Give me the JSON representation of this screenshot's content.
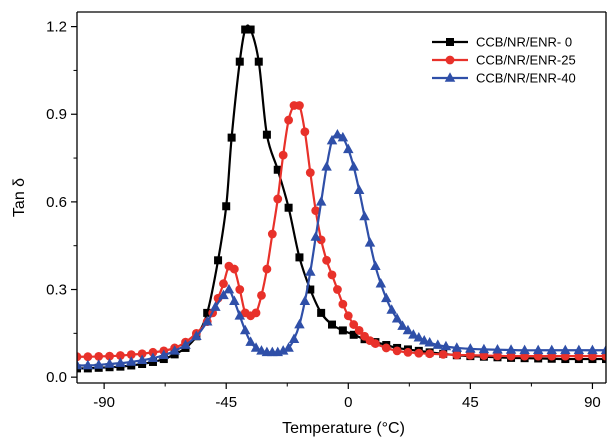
{
  "chart_data": {
    "type": "line",
    "xlabel": "Temperature (°C)",
    "ylabel": "Tan δ",
    "xlim": [
      -100,
      95
    ],
    "ylim": [
      -0.02,
      1.25
    ],
    "xticks": [
      -90,
      -45,
      0,
      45,
      90
    ],
    "yticks": [
      0.0,
      0.3,
      0.6,
      0.9,
      1.2
    ],
    "xtick_labels": [
      "-90",
      "-45",
      "0",
      "45",
      "90"
    ],
    "ytick_labels": [
      "0.0",
      "0.3",
      "0.6",
      "0.9",
      "1.2"
    ],
    "legend_position": "top-right",
    "grid": false,
    "series": [
      {
        "name": "CCB/NR/ENR- 0",
        "color": "#000000",
        "marker": "square",
        "x": [
          -100,
          -96,
          -92,
          -88,
          -84,
          -80,
          -76,
          -72,
          -68,
          -64,
          -60,
          -56,
          -52,
          -48,
          -45,
          -43,
          -40,
          -38,
          -36,
          -33,
          -30,
          -26,
          -22,
          -18,
          -14,
          -10,
          -6,
          -2,
          2,
          6,
          10,
          14,
          18,
          22,
          26,
          30,
          35,
          40,
          45,
          50,
          55,
          60,
          65,
          70,
          75,
          80,
          85,
          90,
          95
        ],
        "y": [
          0.03,
          0.03,
          0.032,
          0.034,
          0.036,
          0.04,
          0.045,
          0.052,
          0.062,
          0.078,
          0.1,
          0.14,
          0.22,
          0.4,
          0.585,
          0.82,
          1.08,
          1.19,
          1.19,
          1.08,
          0.83,
          0.71,
          0.58,
          0.41,
          0.3,
          0.22,
          0.18,
          0.16,
          0.145,
          0.13,
          0.12,
          0.11,
          0.1,
          0.095,
          0.09,
          0.085,
          0.08,
          0.075,
          0.072,
          0.07,
          0.068,
          0.066,
          0.065,
          0.064,
          0.063,
          0.062,
          0.062,
          0.062,
          0.062
        ]
      },
      {
        "name": "CCB/NR/ENR-25",
        "color": "#e8312a",
        "marker": "circle",
        "x": [
          -100,
          -96,
          -92,
          -88,
          -84,
          -80,
          -76,
          -72,
          -68,
          -64,
          -60,
          -56,
          -52,
          -50,
          -48,
          -46,
          -44,
          -42,
          -40,
          -38,
          -36,
          -34,
          -32,
          -30,
          -28,
          -26,
          -24,
          -22,
          -20,
          -18,
          -16,
          -14,
          -12,
          -10,
          -8,
          -6,
          -4,
          -2,
          0,
          2,
          4,
          6,
          8,
          10,
          14,
          18,
          22,
          26,
          30,
          35,
          40,
          45,
          50,
          55,
          60,
          65,
          70,
          75,
          80,
          85,
          90,
          95
        ],
        "y": [
          0.07,
          0.07,
          0.071,
          0.072,
          0.074,
          0.077,
          0.08,
          0.085,
          0.09,
          0.1,
          0.12,
          0.15,
          0.19,
          0.22,
          0.27,
          0.32,
          0.38,
          0.37,
          0.3,
          0.22,
          0.21,
          0.22,
          0.28,
          0.37,
          0.49,
          0.61,
          0.76,
          0.88,
          0.93,
          0.93,
          0.84,
          0.7,
          0.57,
          0.47,
          0.4,
          0.35,
          0.3,
          0.25,
          0.21,
          0.18,
          0.16,
          0.14,
          0.125,
          0.115,
          0.1,
          0.09,
          0.085,
          0.082,
          0.08,
          0.078,
          0.076,
          0.075,
          0.074,
          0.073,
          0.072,
          0.072,
          0.072,
          0.072,
          0.072,
          0.072,
          0.072,
          0.072
        ]
      },
      {
        "name": "CCB/NR/ENR-40",
        "color": "#2f4fa8",
        "marker": "triangle",
        "x": [
          -100,
          -96,
          -92,
          -88,
          -84,
          -80,
          -76,
          -72,
          -68,
          -64,
          -60,
          -56,
          -52,
          -49,
          -46,
          -44,
          -42,
          -40,
          -38,
          -36,
          -34,
          -32,
          -30,
          -28,
          -26,
          -24,
          -22,
          -20,
          -18,
          -16,
          -14,
          -12,
          -10,
          -8,
          -6,
          -4,
          -2,
          0,
          2,
          4,
          6,
          8,
          10,
          12,
          14,
          16,
          18,
          20,
          22,
          24,
          26,
          28,
          30,
          33,
          36,
          40,
          45,
          50,
          55,
          60,
          65,
          70,
          75,
          80,
          85,
          90,
          95
        ],
        "y": [
          0.04,
          0.04,
          0.042,
          0.045,
          0.048,
          0.052,
          0.058,
          0.065,
          0.075,
          0.09,
          0.11,
          0.14,
          0.19,
          0.24,
          0.28,
          0.3,
          0.26,
          0.21,
          0.16,
          0.12,
          0.1,
          0.09,
          0.085,
          0.085,
          0.085,
          0.09,
          0.1,
          0.13,
          0.18,
          0.26,
          0.36,
          0.48,
          0.6,
          0.72,
          0.81,
          0.83,
          0.82,
          0.78,
          0.72,
          0.64,
          0.55,
          0.46,
          0.38,
          0.32,
          0.27,
          0.23,
          0.2,
          0.175,
          0.16,
          0.145,
          0.135,
          0.125,
          0.118,
          0.11,
          0.105,
          0.1,
          0.097,
          0.095,
          0.094,
          0.093,
          0.092,
          0.092,
          0.092,
          0.092,
          0.092,
          0.092,
          0.092
        ]
      }
    ]
  }
}
